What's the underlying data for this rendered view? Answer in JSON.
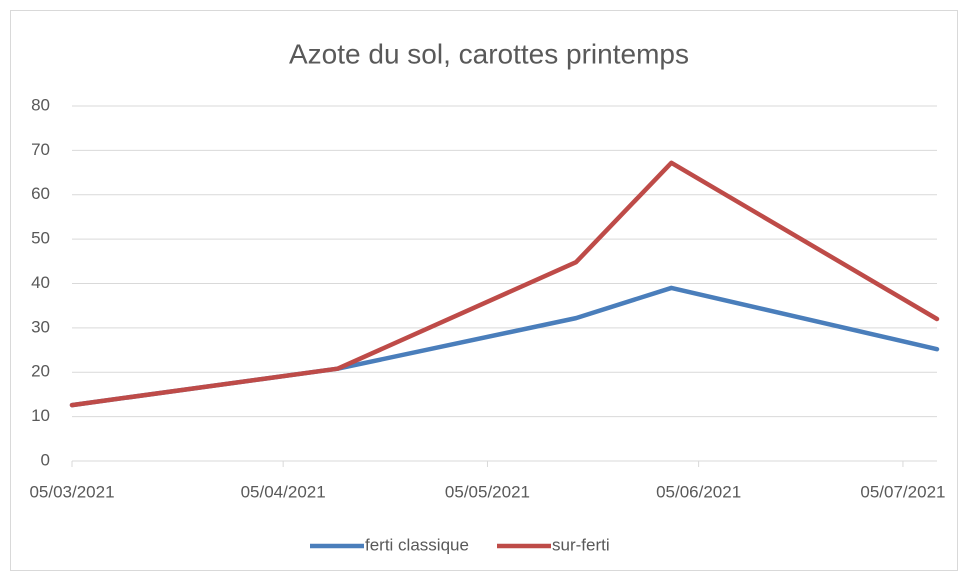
{
  "chart_data": {
    "type": "line",
    "title": "Azote du sol, carottes printemps",
    "x": [
      "2021-03-05",
      "2021-04-13",
      "2021-05-18",
      "2021-06-01",
      "2021-07-10"
    ],
    "series": [
      {
        "name": "ferti classique",
        "color": "#4a7ebb",
        "values": [
          12.6,
          20.8,
          32.2,
          39,
          25.2
        ]
      },
      {
        "name": "sur-ferti",
        "color": "#be4b48",
        "values": [
          12.6,
          20.8,
          44.8,
          67.2,
          32
        ]
      }
    ],
    "xlim": [
      "2021-03-05",
      "2021-07-10"
    ],
    "xticks": [
      {
        "value": "2021-03-05",
        "label": "05/03/2021"
      },
      {
        "value": "2021-04-05",
        "label": "05/04/2021"
      },
      {
        "value": "2021-05-05",
        "label": "05/05/2021"
      },
      {
        "value": "2021-06-05",
        "label": "05/06/2021"
      },
      {
        "value": "2021-07-05",
        "label": "05/07/2021"
      }
    ],
    "ylim": [
      0,
      80
    ],
    "yticks": [
      0,
      10,
      20,
      30,
      40,
      50,
      60,
      70,
      80
    ],
    "grid": true,
    "legend": "bottom"
  }
}
